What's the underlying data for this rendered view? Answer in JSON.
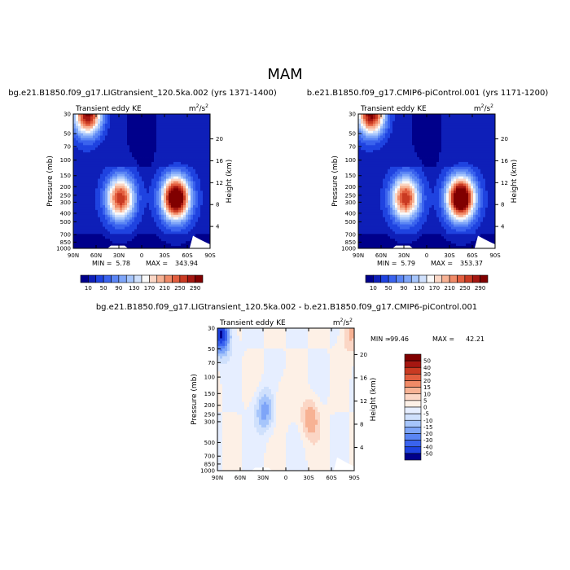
{
  "page_title": "MAM",
  "chart_data": [
    {
      "type": "heatmap",
      "title": "bg.e21.B1850.f09_g17.LIGtransient_120.5ka.002 (yrs 1371-1400)",
      "subtitle": "Transient eddy KE",
      "units_base": "m",
      "units_sup1": "2",
      "units_mid": "/s",
      "units_sup2": "2",
      "xlabel": "",
      "ylabel": "Pressure (mb)",
      "y2label": "Height (km)",
      "x_ticks": [
        "90N",
        "60N",
        "30N",
        "0",
        "30S",
        "60S",
        "90S"
      ],
      "y_ticks": [
        "30",
        "50",
        "70",
        "100",
        "150",
        "200",
        "250",
        "300",
        "400",
        "500",
        "700",
        "850",
        "1000"
      ],
      "y2_ticks": [
        "20",
        "16",
        "12",
        "8",
        "4"
      ],
      "min_label": "MIN =",
      "min_value": "5.78",
      "max_label": "MAX =",
      "max_value": "343.94",
      "min": 5.78,
      "max": 343.94,
      "levels": [
        "10",
        "50",
        "90",
        "130",
        "170",
        "210",
        "250",
        "290"
      ],
      "features": [
        {
          "lat": 70,
          "p": 30,
          "value": 300
        },
        {
          "lat": 28,
          "p": 270,
          "value": 240
        },
        {
          "lat": -45,
          "p": 270,
          "value": 330
        }
      ]
    },
    {
      "type": "heatmap",
      "title": "b.e21.B1850.f09_g17.CMIP6-piControl.001 (yrs 1171-1200)",
      "subtitle": "Transient eddy KE",
      "units_base": "m",
      "units_sup1": "2",
      "units_mid": "/s",
      "units_sup2": "2",
      "xlabel": "",
      "ylabel": "Pressure (mb)",
      "y2label": "Height (km)",
      "x_ticks": [
        "90N",
        "60N",
        "30N",
        "0",
        "30S",
        "60S",
        "90S"
      ],
      "y_ticks": [
        "30",
        "50",
        "70",
        "100",
        "150",
        "200",
        "250",
        "300",
        "400",
        "500",
        "700",
        "850",
        "1000"
      ],
      "y2_ticks": [
        "20",
        "16",
        "12",
        "8",
        "4"
      ],
      "min_label": "MIN =",
      "min_value": "5.79",
      "max_label": "MAX =",
      "max_value": "353.37",
      "min": 5.79,
      "max": 353.37,
      "levels": [
        "10",
        "50",
        "90",
        "130",
        "170",
        "210",
        "250",
        "290"
      ],
      "features": [
        {
          "lat": 72,
          "p": 30,
          "value": 300
        },
        {
          "lat": 28,
          "p": 270,
          "value": 240
        },
        {
          "lat": -45,
          "p": 270,
          "value": 345
        }
      ]
    },
    {
      "type": "heatmap",
      "title": "bg.e21.B1850.f09_g17.LIGtransient_120.5ka.002 - b.e21.B1850.f09_g17.CMIP6-piControl.001",
      "subtitle": "Transient eddy KE",
      "units_base": "m",
      "units_sup1": "2",
      "units_mid": "/s",
      "units_sup2": "2",
      "xlabel": "",
      "ylabel": "Pressure (mb)",
      "y2label": "Height (km)",
      "x_ticks": [
        "90N",
        "60N",
        "30N",
        "0",
        "30S",
        "60S",
        "90S"
      ],
      "y_ticks": [
        "30",
        "50",
        "70",
        "100",
        "150",
        "200",
        "250",
        "300",
        "500",
        "700",
        "850",
        "1000"
      ],
      "y2_ticks": [
        "20",
        "16",
        "12",
        "8",
        "4"
      ],
      "min_label": "MIN =",
      "min_value": "-99.46",
      "max_label": "MAX =",
      "max_value": "42.21",
      "min": -99.46,
      "max": 42.21,
      "levels": [
        "50",
        "40",
        "30",
        "20",
        "15",
        "10",
        "5",
        "0",
        "-5",
        "-10",
        "-15",
        "-20",
        "-30",
        "-40",
        "-50"
      ],
      "features": [
        {
          "lat": 85,
          "p": 35,
          "value": -50
        },
        {
          "lat": 28,
          "p": 230,
          "value": -25
        },
        {
          "lat": -32,
          "p": 280,
          "value": 20
        },
        {
          "lat": 5,
          "p": 180,
          "value": 8
        },
        {
          "lat": -85,
          "p": 35,
          "value": 15
        }
      ]
    }
  ],
  "colors": {
    "cbar_kinetic": [
      "#00008b",
      "#0e1fb8",
      "#1f43e0",
      "#3a63ee",
      "#5a85f4",
      "#7ea5f8",
      "#a6c5fb",
      "#cfe0fc",
      "#f9f9f9",
      "#fbd6c5",
      "#f7b294",
      "#f08a67",
      "#e25e3f",
      "#c93a22",
      "#a51711",
      "#800000"
    ],
    "cbar_diff": [
      "#800000",
      "#a51711",
      "#c93a22",
      "#e25e3f",
      "#f08a67",
      "#f7b294",
      "#fbd6c5",
      "#fdf0e6",
      "#e6eeff",
      "#cfe0fc",
      "#a6c5fb",
      "#7ea5f8",
      "#5a85f4",
      "#3a63ee",
      "#1f43e0",
      "#00008b"
    ]
  }
}
